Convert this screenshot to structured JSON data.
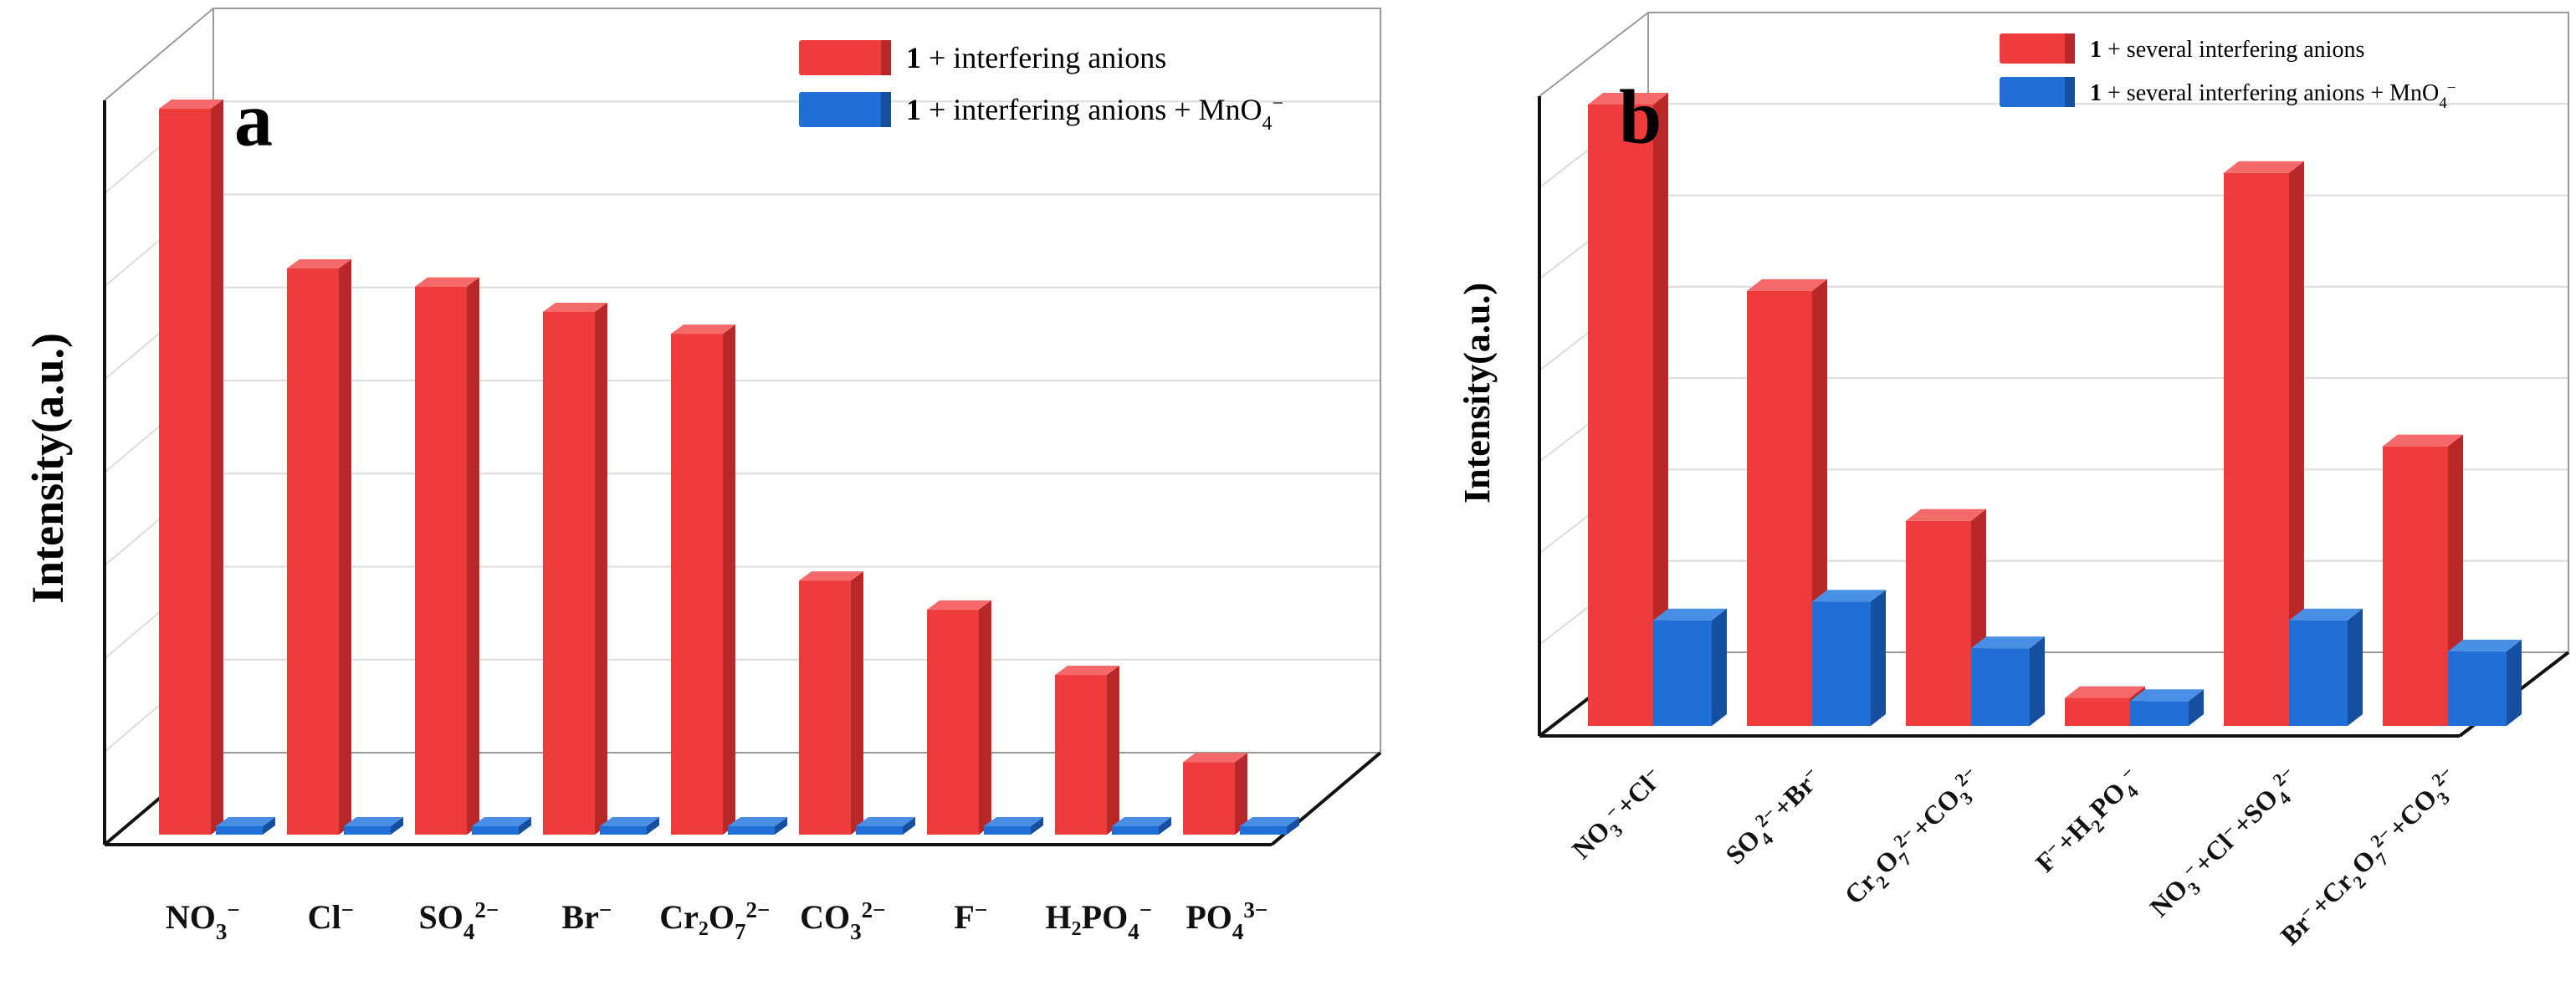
{
  "figure": {
    "colors": {
      "red": "#EE3B3B",
      "red_side": "#B82828",
      "red_top": "#F46A6A",
      "blue": "#1F6FD6",
      "blue_side": "#164FA0",
      "blue_top": "#4A8FE6",
      "grid": "#DCDCDC",
      "frame": "#9A9A9A",
      "axis": "#111111"
    }
  },
  "chart_data": [
    {
      "type": "bar",
      "panel_label": "a",
      "ylabel": "Intensity(a.u.)",
      "categories": [
        {
          "base": "NO",
          "sub": "3",
          "sup": "−"
        },
        {
          "base": "Cl",
          "sub": "",
          "sup": "−"
        },
        {
          "base": "SO",
          "sub": "4",
          "sup": "2−"
        },
        {
          "base": "Br",
          "sub": "",
          "sup": "−"
        },
        {
          "base": "Cr₂O",
          "sub": "7",
          "sup": "2−"
        },
        {
          "base": "CO",
          "sub": "3",
          "sup": "2−"
        },
        {
          "base": "F",
          "sub": "",
          "sup": "−"
        },
        {
          "base": "H₂PO",
          "sub": "4",
          "sup": "−"
        },
        {
          "base": "PO",
          "sub": "4",
          "sup": "3−"
        }
      ],
      "series": [
        {
          "name": "1 + interfering anions",
          "legend_bold": "1",
          "legend_text": " + interfering anions",
          "color": "red",
          "values": [
            100,
            78,
            75.5,
            72,
            69,
            35,
            31,
            22,
            10
          ]
        },
        {
          "name": "1 + interfering anions + MnO4−",
          "legend_bold": "1",
          "legend_text": " + interfering anions + MnO",
          "legend_sub": "4",
          "legend_sup": "−",
          "color": "blue",
          "values": [
            1,
            1,
            1,
            1,
            1,
            1,
            1,
            1,
            1
          ]
        }
      ],
      "ylim": [
        0,
        100
      ],
      "grid": true,
      "legend": "top-right"
    },
    {
      "type": "bar",
      "panel_label": "b",
      "ylabel": "Intensity(a.u.)",
      "categories": [
        {
          "parts": [
            [
              "NO",
              "3",
              "−"
            ],
            [
              "+Cl",
              "",
              "−"
            ]
          ]
        },
        {
          "parts": [
            [
              "SO",
              "4",
              "2−"
            ],
            [
              "+Br",
              "",
              "−"
            ]
          ]
        },
        {
          "parts": [
            [
              "Cr",
              "2",
              ""
            ],
            [
              "O",
              "7",
              "2−"
            ],
            [
              "+CO",
              "3",
              "2−"
            ]
          ]
        },
        {
          "parts": [
            [
              "F",
              "",
              "−"
            ],
            [
              "+H",
              "2",
              ""
            ],
            [
              "PO",
              "4",
              "−"
            ]
          ]
        },
        {
          "parts": [
            [
              "NO",
              "3",
              "−"
            ],
            [
              "+Cl",
              "",
              "−"
            ],
            [
              "+SO",
              "4",
              "2−"
            ]
          ]
        },
        {
          "parts": [
            [
              "Br",
              "",
              "−"
            ],
            [
              "+Cr",
              "2",
              ""
            ],
            [
              "O",
              "7",
              "2−"
            ],
            [
              "+CO",
              "3",
              "2−"
            ]
          ]
        }
      ],
      "series": [
        {
          "name": "1 + several interfering anions",
          "legend_bold": "1",
          "legend_text": " + several interfering anions",
          "color": "red",
          "values": [
            100,
            70,
            33,
            4.5,
            89,
            45
          ]
        },
        {
          "name": "1 + several interfering anions + MnO4−",
          "legend_bold": "1",
          "legend_text": " + several interfering anions + MnO",
          "legend_sub": "4",
          "legend_sup": "−",
          "color": "blue",
          "values": [
            17,
            20,
            12.5,
            4,
            17,
            12
          ]
        }
      ],
      "ylim": [
        0,
        100
      ],
      "grid": true,
      "legend": "top-right"
    }
  ]
}
